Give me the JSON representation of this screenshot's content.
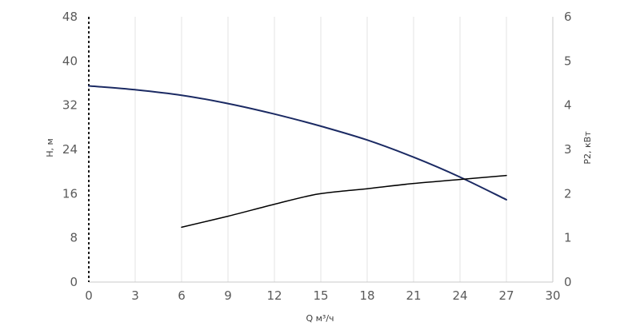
{
  "chart_data": {
    "type": "line",
    "title": "",
    "xlabel": "Q м³/ч",
    "ylabel_left": "H, м",
    "ylabel_right": "P2, кВт",
    "xlim": [
      0,
      30
    ],
    "ylim_left": [
      0,
      48
    ],
    "ylim_right": [
      0,
      6
    ],
    "x_ticks": [
      "0",
      "3",
      "6",
      "9",
      "12",
      "15",
      "18",
      "21",
      "24",
      "27",
      "30"
    ],
    "y_left_ticks": [
      "0",
      "8",
      "16",
      "24",
      "32",
      "40",
      "48"
    ],
    "y_right_ticks": [
      "0",
      "1",
      "2",
      "3",
      "4",
      "5",
      "6"
    ],
    "grid": "vertical",
    "series": [
      {
        "axis": "left",
        "color": "#1b2a63",
        "x": [
          0,
          3,
          6,
          9,
          12,
          15,
          18,
          21,
          24,
          27
        ],
        "y": [
          35.5,
          34.8,
          33.8,
          32.3,
          30.4,
          28.2,
          25.7,
          22.6,
          19.0,
          14.9
        ]
      },
      {
        "axis": "right",
        "color": "#000000",
        "x": [
          6,
          9,
          12,
          14.5,
          16.5,
          18,
          21,
          24,
          27
        ],
        "y": [
          1.24,
          1.49,
          1.76,
          1.97,
          2.06,
          2.11,
          2.23,
          2.32,
          2.41
        ]
      }
    ]
  }
}
